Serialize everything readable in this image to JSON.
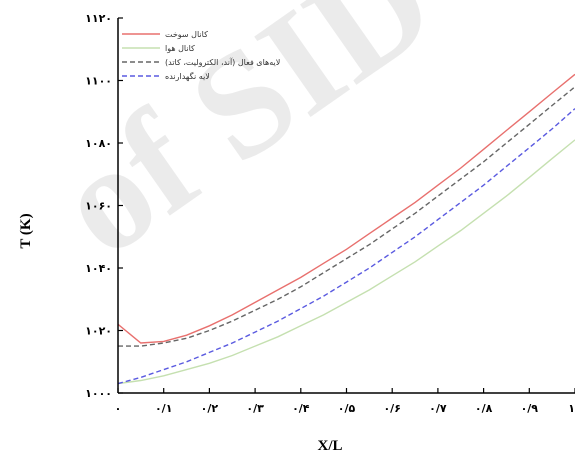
{
  "chart_data": {
    "type": "line",
    "title": "",
    "xlabel": "X/L",
    "ylabel": "T (K)",
    "xlim": [
      0,
      1
    ],
    "ylim": [
      1000,
      1120
    ],
    "grid": false,
    "legend_position": "top-left",
    "x_ticks": [
      0,
      0.1,
      0.2,
      0.3,
      0.4,
      0.5,
      0.6,
      0.7,
      0.8,
      0.9,
      1.0
    ],
    "x_tick_labels": [
      "۰",
      "۰/۱",
      "۰/۲",
      "۰/۳",
      "۰/۴",
      "۰/۵",
      "۰/۶",
      "۰/۷",
      "۰/۸",
      "۰/۹",
      "۱"
    ],
    "y_ticks": [
      1000,
      1020,
      1040,
      1060,
      1080,
      1100,
      1120
    ],
    "y_tick_labels": [
      "۱۰۰۰",
      "۱۰۲۰",
      "۱۰۴۰",
      "۱۰۶۰",
      "۱۰۸۰",
      "۱۱۰۰",
      "۱۱۲۰"
    ],
    "x": [
      0,
      0.05,
      0.1,
      0.15,
      0.2,
      0.25,
      0.3,
      0.35,
      0.4,
      0.45,
      0.5,
      0.55,
      0.6,
      0.65,
      0.7,
      0.75,
      0.8,
      0.85,
      0.9,
      0.95,
      1.0
    ],
    "series": [
      {
        "name": "کانال سوخت",
        "color": "#e8706e",
        "dash": "solid",
        "values": [
          1022,
          1016,
          1016.5,
          1018.5,
          1021.5,
          1025,
          1029,
          1033,
          1037,
          1041.5,
          1046,
          1051,
          1056,
          1061,
          1066.5,
          1072,
          1078,
          1084,
          1090,
          1096,
          1102
        ]
      },
      {
        "name": "کانال هوا",
        "color": "#c5e0b0",
        "dash": "solid",
        "values": [
          1003,
          1004,
          1005.5,
          1007.5,
          1009.5,
          1012,
          1015,
          1018,
          1021.5,
          1025,
          1029,
          1033,
          1037.5,
          1042,
          1047,
          1052,
          1057.5,
          1063,
          1069,
          1075,
          1081
        ]
      },
      {
        "name": "لایه‌های فعال (آند، الکترولیت، کاتد)",
        "color": "#666666",
        "dash": "dashed",
        "values": [
          1015,
          1015,
          1016,
          1017.5,
          1020,
          1023,
          1026.5,
          1030,
          1034,
          1038.5,
          1043,
          1047.5,
          1052.5,
          1057.5,
          1063,
          1068.5,
          1074,
          1080,
          1086,
          1092,
          1098
        ]
      },
      {
        "name": "لایه نگهدارنده",
        "color": "#5a5ae0",
        "dash": "dashed",
        "values": [
          1003,
          1005,
          1007.5,
          1010,
          1013,
          1016,
          1019.5,
          1023,
          1027,
          1031,
          1035.5,
          1040,
          1045,
          1050,
          1055.5,
          1061,
          1066.5,
          1072.5,
          1078.5,
          1084.5,
          1091
        ]
      }
    ]
  }
}
